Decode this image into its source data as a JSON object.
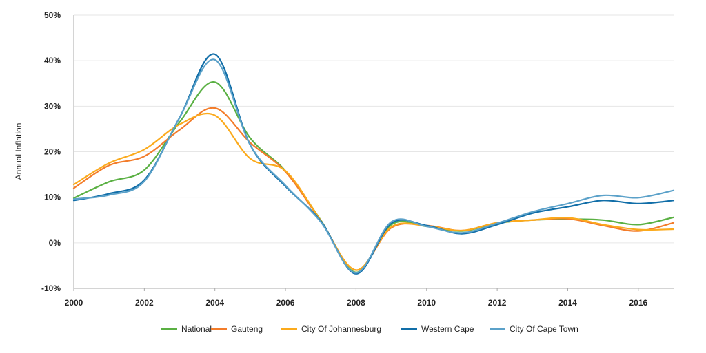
{
  "chart_data": {
    "type": "line",
    "ylabel": "Annual Inflation",
    "xlim": [
      2000,
      2017
    ],
    "ylim": [
      -10,
      50
    ],
    "x_ticks": [
      2000,
      2002,
      2004,
      2006,
      2008,
      2010,
      2012,
      2014,
      2016
    ],
    "y_ticks": [
      -10,
      0,
      10,
      20,
      30,
      40,
      50
    ],
    "y_tick_labels": [
      "-10%",
      "0%",
      "10%",
      "20%",
      "30%",
      "40%",
      "50%"
    ],
    "x_tick_labels": [
      "2000",
      "2002",
      "2004",
      "2006",
      "2008",
      "2010",
      "2012",
      "2014",
      "2016"
    ],
    "grid": "horizontal",
    "legend": "bottom",
    "x": [
      2000,
      2001,
      2002,
      2003,
      2004,
      2005,
      2006,
      2007,
      2008,
      2009,
      2010,
      2011,
      2012,
      2013,
      2014,
      2015,
      2016,
      2017
    ],
    "series": [
      {
        "name": "National",
        "color": "#5ab043",
        "values": [
          9.8,
          13.4,
          16.0,
          26.5,
          35.3,
          23.0,
          15.8,
          5.0,
          -6.5,
          4.0,
          3.6,
          2.6,
          4.3,
          5.0,
          5.2,
          5.0,
          4.0,
          5.6
        ]
      },
      {
        "name": "Gauteng",
        "color": "#f37c2a",
        "values": [
          12.0,
          17.0,
          19.0,
          24.8,
          29.6,
          22.0,
          15.6,
          4.8,
          -6.0,
          3.3,
          3.8,
          2.7,
          4.4,
          5.0,
          5.3,
          3.8,
          2.6,
          4.4
        ]
      },
      {
        "name": "City Of Johannesburg",
        "color": "#fbaa1c",
        "values": [
          12.8,
          17.5,
          20.5,
          26.0,
          28.0,
          18.5,
          15.8,
          4.9,
          -6.0,
          3.5,
          3.7,
          2.7,
          4.4,
          5.0,
          5.5,
          4.0,
          2.9,
          3.0
        ]
      },
      {
        "name": "Western Cape",
        "color": "#116ea8",
        "values": [
          9.3,
          10.8,
          13.8,
          27.5,
          41.4,
          21.5,
          12.4,
          4.8,
          -6.8,
          4.3,
          3.8,
          2.0,
          4.0,
          6.5,
          7.9,
          9.3,
          8.6,
          9.3
        ]
      },
      {
        "name": "City Of Cape Town",
        "color": "#5ba1c9",
        "values": [
          9.6,
          10.5,
          13.5,
          27.5,
          40.2,
          21.5,
          12.6,
          4.6,
          -6.6,
          4.6,
          3.6,
          2.2,
          4.3,
          6.8,
          8.6,
          10.4,
          9.9,
          11.5
        ]
      }
    ]
  }
}
